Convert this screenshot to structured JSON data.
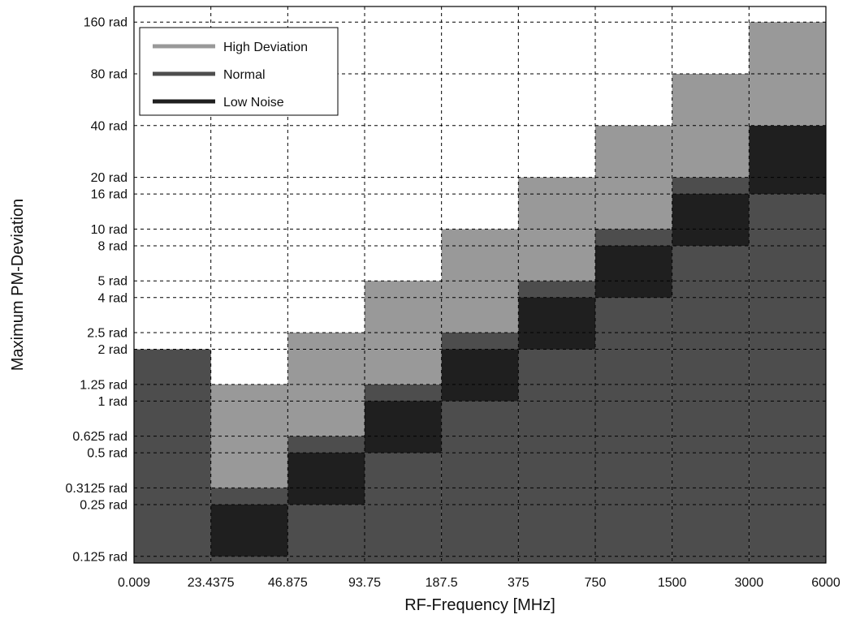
{
  "chart_data": {
    "type": "heatmap",
    "xlabel": "RF-Frequency [MHz]",
    "ylabel": "Maximum PM-Deviation",
    "x_ticks": [
      "0.009",
      "23.4375",
      "46.875",
      "93.75",
      "187.5",
      "375",
      "750",
      "1500",
      "3000",
      "6000"
    ],
    "y_ticks": [
      "0.125 rad",
      "0.25 rad",
      "0.3125 rad",
      "0.5 rad",
      "0.625 rad",
      "1 rad",
      "1.25 rad",
      "2 rad",
      "2.5 rad",
      "4 rad",
      "5 rad",
      "8 rad",
      "10 rad",
      "16 rad",
      "20 rad",
      "40 rad",
      "80 rad",
      "160 rad"
    ],
    "y_scale": "log",
    "grid": true,
    "legend_position": "top-left",
    "colors": {
      "High Deviation": "#999999",
      "Normal": "#4d4d4d",
      "Low Noise": "#1f1f1f"
    },
    "series": [
      {
        "name": "Normal",
        "values": [
          {
            "x_range": [
              "0.009",
              "23.4375"
            ],
            "y_max": "2 rad"
          },
          {
            "x_range": [
              "23.4375",
              "46.875"
            ],
            "y_max": "0.3125 rad"
          },
          {
            "x_range": [
              "46.875",
              "93.75"
            ],
            "y_max": "0.625 rad"
          },
          {
            "x_range": [
              "93.75",
              "187.5"
            ],
            "y_max": "1.25 rad"
          },
          {
            "x_range": [
              "187.5",
              "375"
            ],
            "y_max": "2.5 rad"
          },
          {
            "x_range": [
              "375",
              "750"
            ],
            "y_max": "5 rad"
          },
          {
            "x_range": [
              "750",
              "1500"
            ],
            "y_max": "10 rad"
          },
          {
            "x_range": [
              "1500",
              "3000"
            ],
            "y_max": "20 rad"
          },
          {
            "x_range": [
              "3000",
              "6000"
            ],
            "y_max": "40 rad"
          }
        ]
      },
      {
        "name": "Low Noise",
        "values": [
          {
            "x_range": [
              "23.4375",
              "46.875"
            ],
            "y_range": [
              "0.125 rad",
              "0.25 rad"
            ]
          },
          {
            "x_range": [
              "46.875",
              "93.75"
            ],
            "y_range": [
              "0.25 rad",
              "0.5 rad"
            ]
          },
          {
            "x_range": [
              "93.75",
              "187.5"
            ],
            "y_range": [
              "0.5 rad",
              "1 rad"
            ]
          },
          {
            "x_range": [
              "187.5",
              "375"
            ],
            "y_range": [
              "1 rad",
              "2 rad"
            ]
          },
          {
            "x_range": [
              "375",
              "750"
            ],
            "y_range": [
              "2 rad",
              "4 rad"
            ]
          },
          {
            "x_range": [
              "750",
              "1500"
            ],
            "y_range": [
              "4 rad",
              "8 rad"
            ]
          },
          {
            "x_range": [
              "1500",
              "3000"
            ],
            "y_range": [
              "8 rad",
              "16 rad"
            ]
          },
          {
            "x_range": [
              "3000",
              "6000"
            ],
            "y_range": [
              "16 rad",
              "40 rad"
            ]
          }
        ]
      },
      {
        "name": "High Deviation",
        "values": [
          {
            "x_range": [
              "23.4375",
              "46.875"
            ],
            "y_range": [
              "0.3125 rad",
              "1.25 rad"
            ]
          },
          {
            "x_range": [
              "46.875",
              "93.75"
            ],
            "y_range": [
              "0.625 rad",
              "2.5 rad"
            ]
          },
          {
            "x_range": [
              "93.75",
              "187.5"
            ],
            "y_range": [
              "1.25 rad",
              "5 rad"
            ]
          },
          {
            "x_range": [
              "187.5",
              "375"
            ],
            "y_range": [
              "2.5 rad",
              "10 rad"
            ]
          },
          {
            "x_range": [
              "375",
              "750"
            ],
            "y_range": [
              "5 rad",
              "20 rad"
            ]
          },
          {
            "x_range": [
              "750",
              "1500"
            ],
            "y_range": [
              "10 rad",
              "40 rad"
            ]
          },
          {
            "x_range": [
              "1500",
              "3000"
            ],
            "y_range": [
              "20 rad",
              "80 rad"
            ]
          },
          {
            "x_range": [
              "3000",
              "6000"
            ],
            "y_range": [
              "40 rad",
              "160 rad"
            ]
          }
        ]
      }
    ]
  }
}
